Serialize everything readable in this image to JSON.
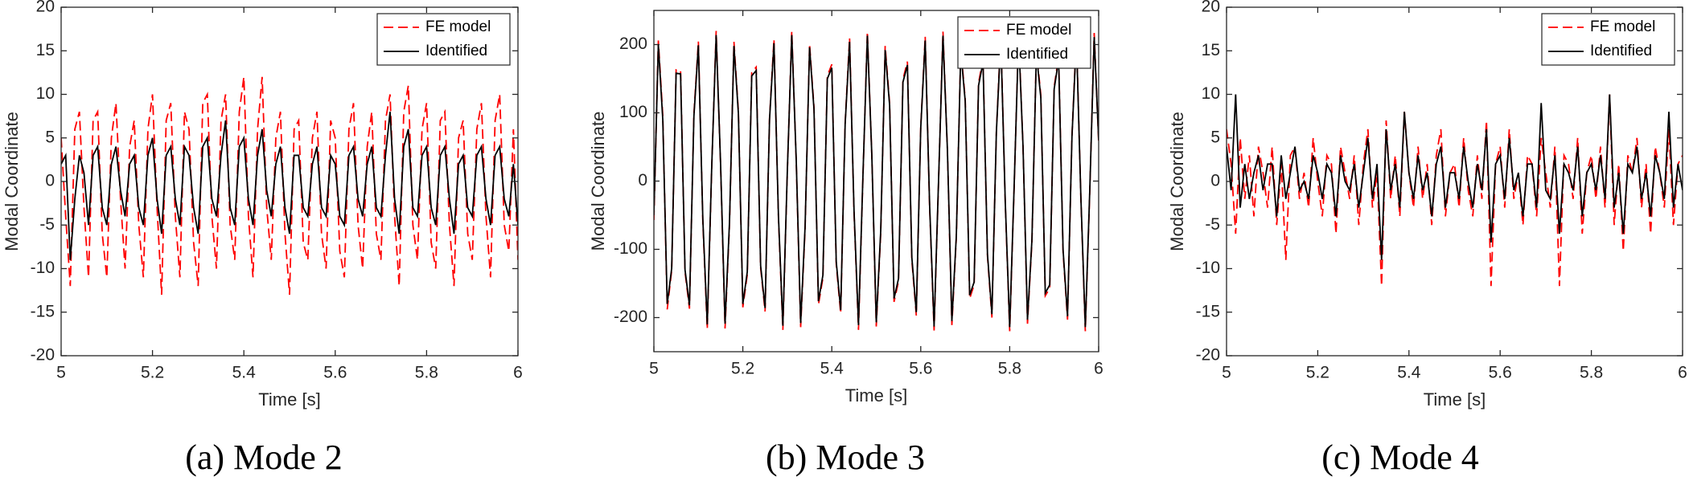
{
  "chart_data": [
    {
      "type": "line",
      "caption": "(a) Mode 2",
      "xlabel": "Time [s]",
      "ylabel": "Modal Coordinate",
      "legend": "upper right",
      "xlim": [
        5,
        6
      ],
      "ylim": [
        -20,
        20
      ],
      "xticks": [
        5,
        5.2,
        5.4,
        5.6,
        5.8,
        6
      ],
      "yticks": [
        -20,
        -15,
        -10,
        -5,
        0,
        5,
        10,
        15,
        20
      ],
      "x": [
        5,
        5.01,
        5.02,
        5.03,
        5.04,
        5.05,
        5.06,
        5.07,
        5.08,
        5.09,
        5.1,
        5.11,
        5.12,
        5.13,
        5.14,
        5.15,
        5.16,
        5.17,
        5.18,
        5.19,
        5.2,
        5.21,
        5.22,
        5.23,
        5.24,
        5.25,
        5.26,
        5.27,
        5.28,
        5.29,
        5.3,
        5.31,
        5.32,
        5.33,
        5.34,
        5.35,
        5.36,
        5.37,
        5.38,
        5.39,
        5.4,
        5.41,
        5.42,
        5.43,
        5.44,
        5.45,
        5.46,
        5.47,
        5.48,
        5.49,
        5.5,
        5.51,
        5.52,
        5.53,
        5.54,
        5.55,
        5.56,
        5.57,
        5.58,
        5.59,
        5.6,
        5.61,
        5.62,
        5.63,
        5.64,
        5.65,
        5.66,
        5.67,
        5.68,
        5.69,
        5.7,
        5.71,
        5.72,
        5.73,
        5.74,
        5.75,
        5.76,
        5.77,
        5.78,
        5.79,
        5.8,
        5.81,
        5.82,
        5.83,
        5.84,
        5.85,
        5.86,
        5.87,
        5.88,
        5.89,
        5.9,
        5.91,
        5.92,
        5.93,
        5.94,
        5.95,
        5.96,
        5.97,
        5.98,
        5.99,
        6
      ],
      "series": [
        {
          "name": "FE model",
          "color": "#ff0000",
          "line_style": "dashed",
          "values": [
            5,
            -4,
            -12,
            6,
            8,
            -3,
            -11,
            7,
            8,
            -6,
            -11,
            5,
            9,
            -2,
            -10,
            4,
            7,
            -5,
            -11,
            6,
            10,
            -3,
            -13,
            7,
            9,
            -4,
            -11,
            8,
            6,
            -7,
            -12,
            9,
            10,
            -4,
            -10,
            7,
            10,
            -5,
            -9,
            8,
            12,
            -4,
            -11,
            6,
            12,
            -3,
            -9,
            5,
            8,
            -6,
            -13,
            6,
            7,
            -7,
            -9,
            5,
            8,
            -6,
            -10,
            7,
            5,
            -8,
            -11,
            6,
            9,
            -5,
            -10,
            4,
            8,
            -6,
            -9,
            7,
            10,
            -4,
            -12,
            8,
            11,
            -5,
            -9,
            6,
            9,
            -7,
            -10,
            7,
            8,
            -5,
            -12,
            5,
            7,
            -6,
            -9,
            6,
            9,
            -4,
            -11,
            7,
            10,
            -5,
            -8,
            6,
            -9
          ]
        },
        {
          "name": "Identified",
          "color": "#000000",
          "line_style": "solid",
          "values": [
            2,
            3,
            -9,
            -2,
            3,
            1,
            -5,
            3,
            4,
            -3,
            -5,
            2,
            4,
            -1,
            -4,
            2,
            3,
            -3,
            -5,
            3,
            5,
            -2,
            -6,
            3,
            4,
            -2,
            -5,
            4,
            3,
            -3,
            -6,
            4,
            5,
            -2,
            -4,
            3,
            7,
            -3,
            -5,
            4,
            5,
            -2,
            -5,
            3,
            6,
            -1,
            -4,
            2,
            4,
            -3,
            -6,
            3,
            3,
            -3,
            -4,
            2,
            4,
            -3,
            -4,
            3,
            2,
            -4,
            -5,
            3,
            4,
            -2,
            -4,
            2,
            4,
            -3,
            -4,
            3,
            8,
            -2,
            -6,
            4,
            6,
            -3,
            -4,
            3,
            4,
            -3,
            -5,
            3,
            4,
            -2,
            -6,
            2,
            3,
            -3,
            -4,
            3,
            4,
            -2,
            -5,
            3,
            4,
            -2,
            -4,
            2,
            -5
          ]
        }
      ]
    },
    {
      "type": "line",
      "caption": "(b) Mode 3",
      "xlabel": "Time [s]",
      "ylabel": "Modal Coordinate",
      "legend": "upper right",
      "xlim": [
        5,
        6
      ],
      "ylim": [
        -250,
        250
      ],
      "xticks": [
        5,
        5.2,
        5.4,
        5.6,
        5.8,
        6
      ],
      "yticks": [
        -200,
        -100,
        0,
        100,
        200
      ],
      "x": [
        5,
        5.01,
        5.02,
        5.03,
        5.04,
        5.05,
        5.06,
        5.07,
        5.08,
        5.09,
        5.1,
        5.11,
        5.12,
        5.13,
        5.14,
        5.15,
        5.16,
        5.17,
        5.18,
        5.19,
        5.2,
        5.21,
        5.22,
        5.23,
        5.24,
        5.25,
        5.26,
        5.27,
        5.28,
        5.29,
        5.3,
        5.31,
        5.32,
        5.33,
        5.34,
        5.35,
        5.36,
        5.37,
        5.38,
        5.39,
        5.4,
        5.41,
        5.42,
        5.43,
        5.44,
        5.45,
        5.46,
        5.47,
        5.48,
        5.49,
        5.5,
        5.51,
        5.52,
        5.53,
        5.54,
        5.55,
        5.56,
        5.57,
        5.58,
        5.59,
        5.6,
        5.61,
        5.62,
        5.63,
        5.64,
        5.65,
        5.66,
        5.67,
        5.68,
        5.69,
        5.7,
        5.71,
        5.72,
        5.73,
        5.74,
        5.75,
        5.76,
        5.77,
        5.78,
        5.79,
        5.8,
        5.81,
        5.82,
        5.83,
        5.84,
        5.85,
        5.86,
        5.87,
        5.88,
        5.89,
        5.9,
        5.91,
        5.92,
        5.93,
        5.94,
        5.95,
        5.96,
        5.97,
        5.98,
        5.99,
        6
      ],
      "series": [
        {
          "name": "FE model",
          "color": "#ff0000",
          "line_style": "dashed",
          "values": [
            -57,
            206,
            96,
            -188,
            -131,
            163,
            162,
            -133,
            -187,
            98,
            205,
            -59,
            -217,
            18,
            220,
            23,
            -216,
            -64,
            204,
            102,
            -185,
            -137,
            159,
            167,
            -127,
            -191,
            92,
            208,
            -53,
            -218,
            12,
            220,
            30,
            -214,
            -70,
            201,
            108,
            -181,
            -142,
            154,
            171,
            -122,
            -194,
            85,
            210,
            -46,
            -218,
            5,
            219,
            37,
            -213,
            -77,
            198,
            114,
            -177,
            -147,
            149,
            175,
            -116,
            -197,
            79,
            212,
            -39,
            -219,
            -2,
            219,
            44,
            -211,
            -83,
            195,
            120,
            -172,
            -152,
            144,
            179,
            -110,
            -200,
            72,
            214,
            -32,
            -220,
            -9,
            218,
            50,
            -209,
            -89,
            192,
            126,
            -168,
            -157,
            138,
            183,
            -104,
            -203,
            66,
            215,
            -25,
            -220,
            -16,
            217,
            57
          ]
        },
        {
          "name": "Identified",
          "color": "#000000",
          "line_style": "solid",
          "values": [
            -50,
            200,
            90,
            -180,
            -128,
            158,
            157,
            -130,
            -182,
            95,
            199,
            -55,
            -210,
            20,
            214,
            25,
            -209,
            -60,
            198,
            99,
            -180,
            -133,
            154,
            162,
            -124,
            -186,
            90,
            202,
            -50,
            -212,
            14,
            214,
            32,
            -208,
            -66,
            196,
            105,
            -176,
            -138,
            150,
            166,
            -118,
            -189,
            83,
            204,
            -43,
            -211,
            7,
            213,
            38,
            -207,
            -73,
            192,
            111,
            -172,
            -143,
            145,
            170,
            -112,
            -192,
            78,
            206,
            -36,
            -213,
            0,
            213,
            45,
            -205,
            -80,
            190,
            117,
            -167,
            -148,
            140,
            174,
            -107,
            -195,
            71,
            208,
            -30,
            -214,
            -7,
            212,
            50,
            -203,
            -86,
            187,
            122,
            -164,
            -152,
            135,
            178,
            -101,
            -198,
            65,
            209,
            -23,
            -214,
            -14,
            211,
            60
          ]
        }
      ]
    },
    {
      "type": "line",
      "caption": "(c) Mode 4",
      "xlabel": "Time [s]",
      "ylabel": "Modal Coordinate",
      "legend": "upper right",
      "xlim": [
        5,
        6
      ],
      "ylim": [
        -20,
        20
      ],
      "xticks": [
        5,
        5.2,
        5.4,
        5.6,
        5.8,
        6
      ],
      "yticks": [
        -20,
        -15,
        -10,
        -5,
        0,
        5,
        10,
        15,
        20
      ],
      "x": [
        5,
        5.01,
        5.02,
        5.03,
        5.04,
        5.05,
        5.06,
        5.07,
        5.08,
        5.09,
        5.1,
        5.11,
        5.12,
        5.13,
        5.14,
        5.15,
        5.16,
        5.17,
        5.18,
        5.19,
        5.2,
        5.21,
        5.22,
        5.23,
        5.24,
        5.25,
        5.26,
        5.27,
        5.28,
        5.29,
        5.3,
        5.31,
        5.32,
        5.33,
        5.34,
        5.35,
        5.36,
        5.37,
        5.38,
        5.39,
        5.4,
        5.41,
        5.42,
        5.43,
        5.44,
        5.45,
        5.46,
        5.47,
        5.48,
        5.49,
        5.5,
        5.51,
        5.52,
        5.53,
        5.54,
        5.55,
        5.56,
        5.57,
        5.58,
        5.59,
        5.6,
        5.61,
        5.62,
        5.63,
        5.64,
        5.65,
        5.66,
        5.67,
        5.68,
        5.69,
        5.7,
        5.71,
        5.72,
        5.73,
        5.74,
        5.75,
        5.76,
        5.77,
        5.78,
        5.79,
        5.8,
        5.81,
        5.82,
        5.83,
        5.84,
        5.85,
        5.86,
        5.87,
        5.88,
        5.89,
        5.9,
        5.91,
        5.92,
        5.93,
        5.94,
        5.95,
        5.96,
        5.97,
        5.98,
        5.99,
        6
      ],
      "series": [
        {
          "name": "FE model",
          "color": "#ff0000",
          "line_style": "dashed",
          "values": [
            6,
            2,
            -6,
            5,
            -2,
            3,
            -4,
            4,
            1,
            -3,
            4,
            -5,
            2,
            -9,
            3,
            4,
            -2,
            1,
            -3,
            5,
            0,
            -4,
            3,
            2,
            -6,
            4,
            1,
            -2,
            3,
            -5,
            2,
            6,
            -3,
            1,
            -12,
            7,
            -2,
            3,
            -4,
            8,
            1,
            -3,
            4,
            -2,
            2,
            -5,
            3,
            6,
            -4,
            1,
            2,
            -3,
            5,
            -1,
            -4,
            3,
            -2,
            7,
            -12,
            2,
            4,
            -3,
            6,
            -2,
            1,
            -5,
            3,
            2,
            -4,
            5,
            1,
            -3,
            4,
            -12,
            3,
            2,
            -2,
            5,
            -6,
            1,
            3,
            -2,
            4,
            -3,
            10,
            -5,
            2,
            -8,
            3,
            1,
            5,
            -3,
            2,
            -6,
            4,
            1,
            -3,
            6,
            -5,
            2,
            3
          ]
        },
        {
          "name": "Identified",
          "color": "#000000",
          "line_style": "solid",
          "values": [
            4,
            -1,
            10,
            -3,
            2,
            -2,
            1,
            3,
            -1,
            2,
            2,
            -4,
            3,
            -2,
            1,
            4,
            -1,
            0,
            -2,
            3,
            1,
            -2,
            2,
            1,
            -4,
            3,
            0,
            -1,
            2,
            -3,
            1,
            5,
            -2,
            2,
            -9,
            6,
            -1,
            2,
            -3,
            8,
            1,
            -2,
            3,
            -1,
            1,
            -4,
            2,
            4,
            -3,
            1,
            1,
            -2,
            4,
            0,
            -3,
            2,
            -1,
            6,
            -7,
            2,
            3,
            -2,
            5,
            -1,
            1,
            -4,
            2,
            2,
            -3,
            9,
            -1,
            -2,
            3,
            -6,
            2,
            1,
            -1,
            4,
            -4,
            1,
            2,
            -1,
            3,
            -2,
            10,
            -3,
            1,
            -6,
            2,
            1,
            4,
            -2,
            1,
            -4,
            3,
            1,
            -2,
            8,
            -3,
            2,
            -1
          ]
        }
      ]
    }
  ]
}
